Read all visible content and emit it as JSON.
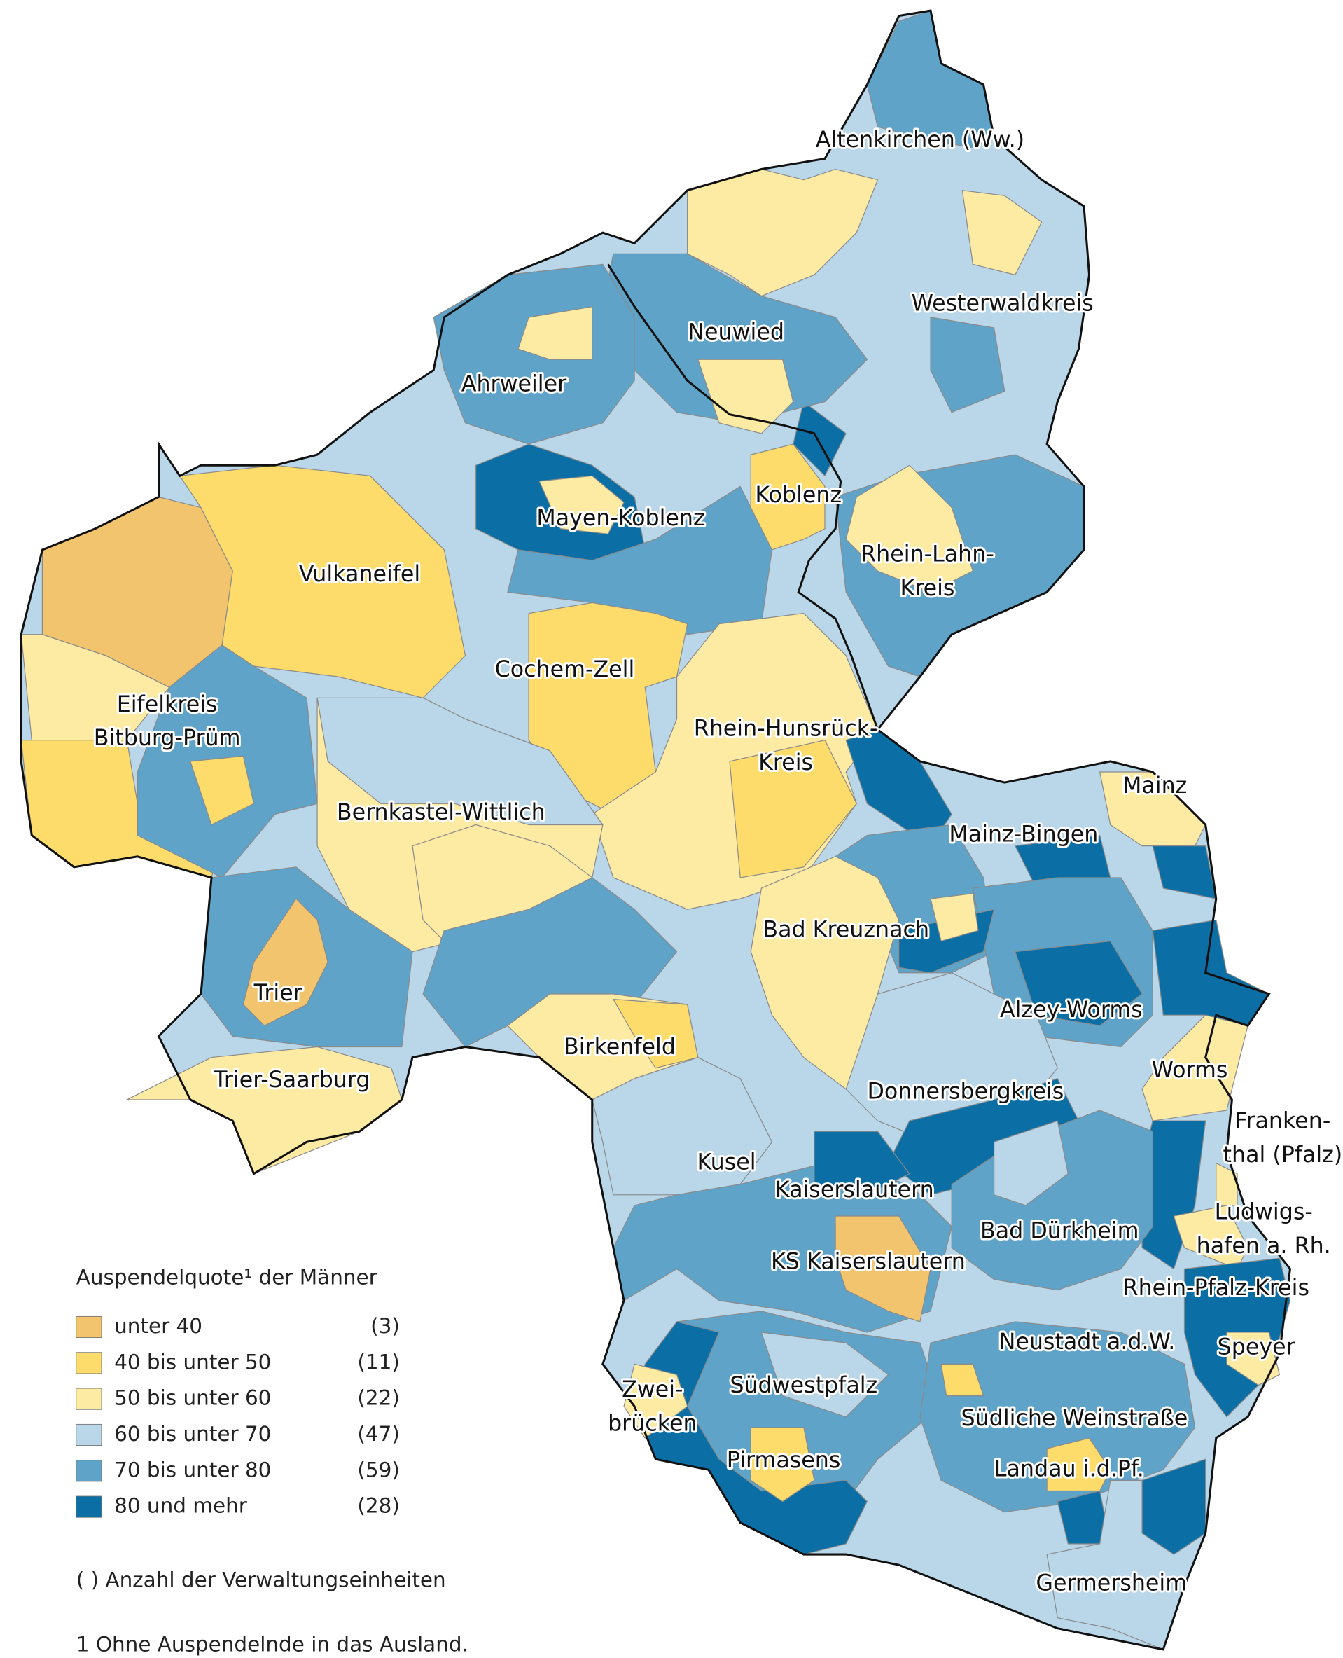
{
  "regions": [
    {
      "lines": [
        "Altenkirchen (Ww.)"
      ]
    },
    {
      "lines": [
        "Westerwaldkreis"
      ]
    },
    {
      "lines": [
        "Neuwied"
      ]
    },
    {
      "lines": [
        "Ahrweiler"
      ]
    },
    {
      "lines": [
        "Koblenz"
      ]
    },
    {
      "lines": [
        "Mayen-Koblenz"
      ]
    },
    {
      "lines": [
        "Rhein-Lahn-",
        "Kreis"
      ]
    },
    {
      "lines": [
        "Vulkaneifel"
      ]
    },
    {
      "lines": [
        "Cochem-Zell"
      ]
    },
    {
      "lines": [
        "Eifelkreis",
        "Bitburg-Prüm"
      ]
    },
    {
      "lines": [
        "Rhein-Hunsrück-",
        "Kreis"
      ]
    },
    {
      "lines": [
        "Mainz"
      ]
    },
    {
      "lines": [
        "Bernkastel-Wittlich"
      ]
    },
    {
      "lines": [
        "Mainz-Bingen"
      ]
    },
    {
      "lines": [
        "Bad Kreuznach"
      ]
    },
    {
      "lines": [
        "Trier"
      ]
    },
    {
      "lines": [
        "Alzey-Worms"
      ]
    },
    {
      "lines": [
        "Birkenfeld"
      ]
    },
    {
      "lines": [
        "Worms"
      ]
    },
    {
      "lines": [
        "Trier-Saarburg"
      ]
    },
    {
      "lines": [
        "Donnersbergkreis"
      ]
    },
    {
      "lines": [
        "Franken-",
        "thal (Pfalz)"
      ]
    },
    {
      "lines": [
        "Kusel"
      ]
    },
    {
      "lines": [
        "Kaiserslautern"
      ]
    },
    {
      "lines": [
        "Ludwigs-",
        "hafen a. Rh."
      ]
    },
    {
      "lines": [
        "Bad Dürkheim"
      ]
    },
    {
      "lines": [
        "KS Kaiserslautern"
      ]
    },
    {
      "lines": [
        "Rhein-Pfalz-Kreis"
      ]
    },
    {
      "lines": [
        "Speyer"
      ]
    },
    {
      "lines": [
        "Neustadt a.d.W."
      ]
    },
    {
      "lines": [
        "Südwestpfalz"
      ]
    },
    {
      "lines": [
        "Zwei-",
        "brücken"
      ]
    },
    {
      "lines": [
        "Südliche Weinstraße"
      ]
    },
    {
      "lines": [
        "Pirmasens"
      ]
    },
    {
      "lines": [
        "Landau i.d.Pf."
      ]
    },
    {
      "lines": [
        "Germersheim"
      ]
    }
  ],
  "legend": {
    "title": "Auspendelquote¹ der Männer",
    "items": [
      {
        "label": "unter 40",
        "count": "(3)",
        "color": "#f2c46d"
      },
      {
        "label": "40 bis unter 50",
        "count": "(11)",
        "color": "#fddc6c"
      },
      {
        "label": "50 bis unter 60",
        "count": "(22)",
        "color": "#fdeaa3"
      },
      {
        "label": "60 bis unter 70",
        "count": "(47)",
        "color": "#b9d7e8"
      },
      {
        "label": "70 bis unter 80",
        "count": "(59)",
        "color": "#5fa3c9"
      },
      {
        "label": "80 und mehr",
        "count": "(28)",
        "color": "#0b6ea5"
      }
    ],
    "note": "( ) Anzahl der Verwaltungseinheiten"
  },
  "footnote": "1 Ohne Auspendelnde in das Ausland."
}
